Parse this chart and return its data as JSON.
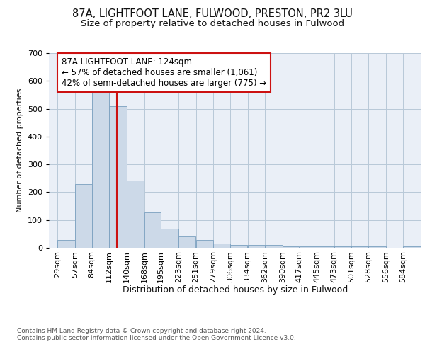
{
  "title1": "87A, LIGHTFOOT LANE, FULWOOD, PRESTON, PR2 3LU",
  "title2": "Size of property relative to detached houses in Fulwood",
  "xlabel": "Distribution of detached houses by size in Fulwood",
  "ylabel": "Number of detached properties",
  "bar_edges": [
    29,
    57,
    84,
    112,
    140,
    168,
    195,
    223,
    251,
    279,
    306,
    334,
    362,
    390,
    417,
    445,
    473,
    501,
    528,
    556,
    584
  ],
  "bar_heights": [
    28,
    230,
    565,
    510,
    242,
    127,
    70,
    42,
    27,
    15,
    10,
    10,
    10,
    5,
    5,
    5,
    5,
    5,
    5,
    0,
    5
  ],
  "bar_color": "#ccd9e8",
  "bar_edge_color": "#7a9fbf",
  "grid_color": "#b8c8d8",
  "bg_color": "#eaeff7",
  "property_sqm": 124,
  "red_line_color": "#cc1111",
  "annotation_text": "87A LIGHTFOOT LANE: 124sqm\n← 57% of detached houses are smaller (1,061)\n42% of semi-detached houses are larger (775) →",
  "annotation_box_color": "#ffffff",
  "annotation_box_edge": "#cc1111",
  "ylim": [
    0,
    700
  ],
  "yticks": [
    0,
    100,
    200,
    300,
    400,
    500,
    600,
    700
  ],
  "footnote": "Contains HM Land Registry data © Crown copyright and database right 2024.\nContains public sector information licensed under the Open Government Licence v3.0.",
  "title1_fontsize": 10.5,
  "title2_fontsize": 9.5,
  "xlabel_fontsize": 9,
  "ylabel_fontsize": 8,
  "tick_fontsize": 8,
  "annotation_fontsize": 8.5
}
